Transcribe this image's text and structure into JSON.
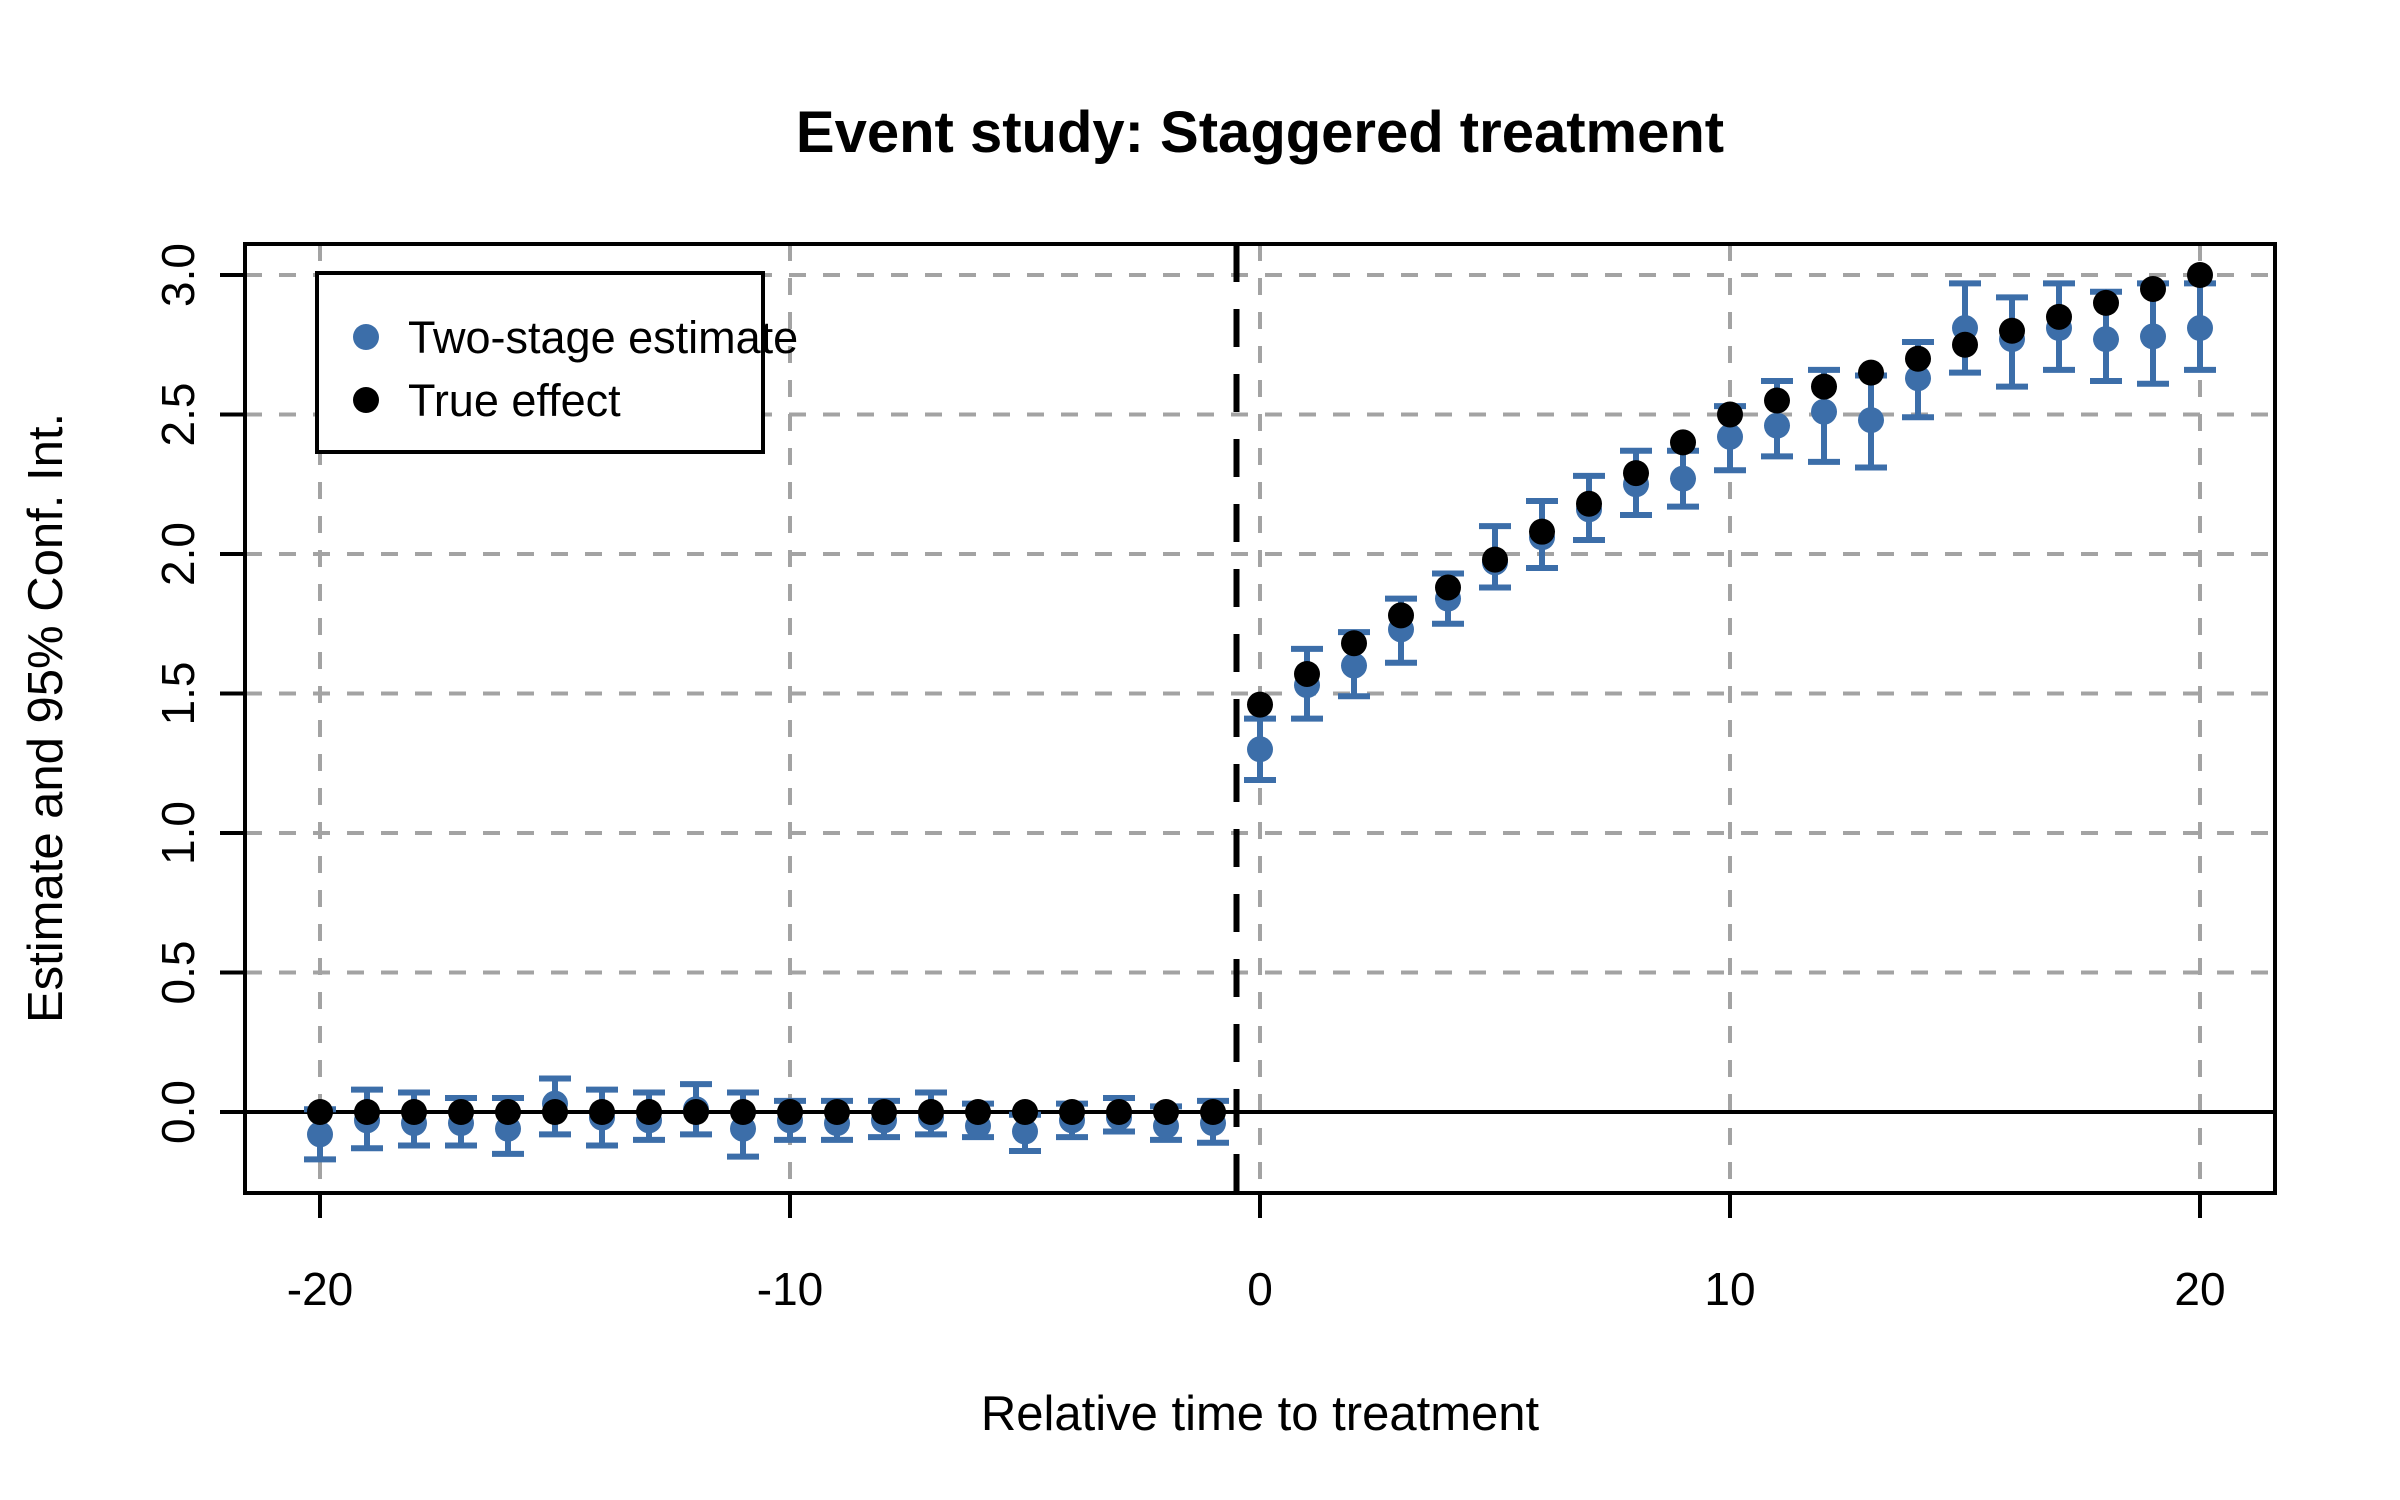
{
  "title": "Event study: Staggered treatment",
  "axes": {
    "x": {
      "label": "Relative time to treatment",
      "tick_values": [
        -20,
        -10,
        0,
        10,
        20
      ],
      "tick_labels": [
        "-20",
        "-10",
        "0",
        "10",
        "20"
      ],
      "range": [
        -21.6,
        21.6
      ]
    },
    "y": {
      "label": "Estimate and 95% Conf. Int.",
      "tick_values": [
        0,
        0.5,
        1.0,
        1.5,
        2.0,
        2.5,
        3.0
      ],
      "tick_labels": [
        "0.0",
        "0.5",
        "1.0",
        "1.5",
        "2.0",
        "2.5",
        "3.0"
      ],
      "range": [
        -0.29,
        3.11
      ]
    }
  },
  "legend": {
    "items": [
      {
        "label": "Two-stage estimate",
        "color": "#3C6EA9"
      },
      {
        "label": "True effect",
        "color": "#000000"
      }
    ]
  },
  "colors": {
    "estimate_blue": "#3C6EA9",
    "true_black": "#000000",
    "grid_gray": "#A3A3A3",
    "background": "#FFFFFF"
  },
  "chart_data": {
    "type": "scatter",
    "x": [
      -20,
      -19,
      -18,
      -17,
      -16,
      -15,
      -14,
      -13,
      -12,
      -11,
      -10,
      -9,
      -8,
      -7,
      -6,
      -5,
      -4,
      -3,
      -2,
      -1,
      0,
      1,
      2,
      3,
      4,
      5,
      6,
      7,
      8,
      9,
      10,
      11,
      12,
      13,
      14,
      15,
      16,
      17,
      18,
      19,
      20
    ],
    "series": [
      {
        "name": "Two-stage estimate",
        "color": "#3C6EA9",
        "marker": "filled-circle",
        "has_error_bars": true,
        "values": [
          -0.08,
          -0.03,
          -0.04,
          -0.04,
          -0.06,
          0.03,
          -0.02,
          -0.03,
          0.01,
          -0.06,
          -0.03,
          -0.04,
          -0.03,
          -0.02,
          -0.05,
          -0.07,
          -0.03,
          -0.02,
          -0.05,
          -0.04,
          1.3,
          1.53,
          1.6,
          1.73,
          1.84,
          1.97,
          2.06,
          2.16,
          2.25,
          2.27,
          2.42,
          2.46,
          2.51,
          2.48,
          2.63,
          2.81,
          2.77,
          2.81,
          2.77,
          2.78,
          2.81
        ],
        "ci_low": [
          -0.17,
          -0.13,
          -0.12,
          -0.12,
          -0.15,
          -0.08,
          -0.12,
          -0.1,
          -0.08,
          -0.16,
          -0.1,
          -0.1,
          -0.09,
          -0.08,
          -0.09,
          -0.14,
          -0.09,
          -0.07,
          -0.1,
          -0.11,
          1.19,
          1.41,
          1.49,
          1.61,
          1.75,
          1.88,
          1.95,
          2.05,
          2.14,
          2.17,
          2.3,
          2.35,
          2.33,
          2.31,
          2.49,
          2.65,
          2.6,
          2.66,
          2.62,
          2.61,
          2.66
        ],
        "ci_high": [
          0.01,
          0.08,
          0.07,
          0.05,
          0.05,
          0.12,
          0.08,
          0.07,
          0.1,
          0.07,
          0.04,
          0.04,
          0.04,
          0.07,
          0.03,
          -0.01,
          0.03,
          0.05,
          0.02,
          0.04,
          1.41,
          1.66,
          1.72,
          1.84,
          1.93,
          2.1,
          2.19,
          2.28,
          2.37,
          2.37,
          2.53,
          2.62,
          2.66,
          2.64,
          2.76,
          2.97,
          2.92,
          2.97,
          2.94,
          2.97,
          2.97
        ]
      },
      {
        "name": "True effect",
        "color": "#000000",
        "marker": "filled-circle",
        "has_error_bars": false,
        "values": [
          0,
          0,
          0,
          0,
          0,
          0,
          0,
          0,
          0,
          0,
          0,
          0,
          0,
          0,
          0,
          0,
          0,
          0,
          0,
          0,
          1.46,
          1.57,
          1.68,
          1.78,
          1.88,
          1.98,
          2.08,
          2.18,
          2.29,
          2.4,
          2.5,
          2.55,
          2.6,
          2.65,
          2.7,
          2.75,
          2.8,
          2.85,
          2.9,
          2.95,
          3.0
        ]
      }
    ],
    "reference_lines": {
      "horizontal_solid_y": 0,
      "vertical_dashed_x": -0.5
    },
    "grid": {
      "show": true,
      "x_at": [
        -20,
        -10,
        0,
        10,
        20
      ],
      "y_at": [
        0,
        0.5,
        1.0,
        1.5,
        2.0,
        2.5,
        3.0
      ],
      "style": "dashed-gray"
    },
    "title": "Event study: Staggered treatment",
    "xlabel": "Relative time to treatment",
    "ylabel": "Estimate and 95% Conf. Int.",
    "xlim": [
      -21.6,
      21.6
    ],
    "ylim": [
      -0.29,
      3.11
    ],
    "legend_position": "top-left"
  }
}
